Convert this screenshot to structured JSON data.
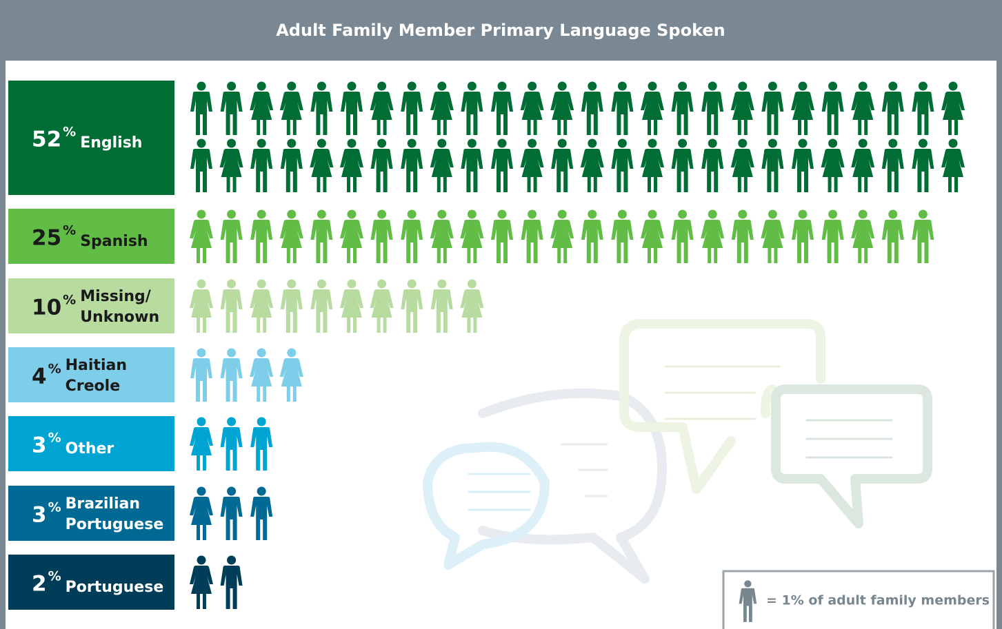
{
  "chart_data": {
    "type": "pictograph",
    "title": "Adult Family Member Primary Language Spoken",
    "unit": "%",
    "categories": [
      [
        "English"
      ],
      [
        "Spanish"
      ],
      [
        "Missing/",
        "Unknown"
      ],
      [
        "Haitian",
        "Creole"
      ],
      [
        "Other"
      ],
      [
        "Brazilian",
        "Portuguese"
      ],
      [
        "Portuguese"
      ]
    ],
    "values": [
      52,
      25,
      10,
      4,
      3,
      3,
      2
    ],
    "colors": [
      "#006d35",
      "#62bd47",
      "#b8dba0",
      "#7ecde9",
      "#00a4d3",
      "#006a94",
      "#003d58"
    ],
    "label_colors": [
      "#ffffff",
      "#1a1a1a",
      "#1a1a1a",
      "#1a1a1a",
      "#ffffff",
      "#ffffff",
      "#ffffff"
    ],
    "key_label": "= 1% of adult family members",
    "key_color": "#77868f"
  }
}
